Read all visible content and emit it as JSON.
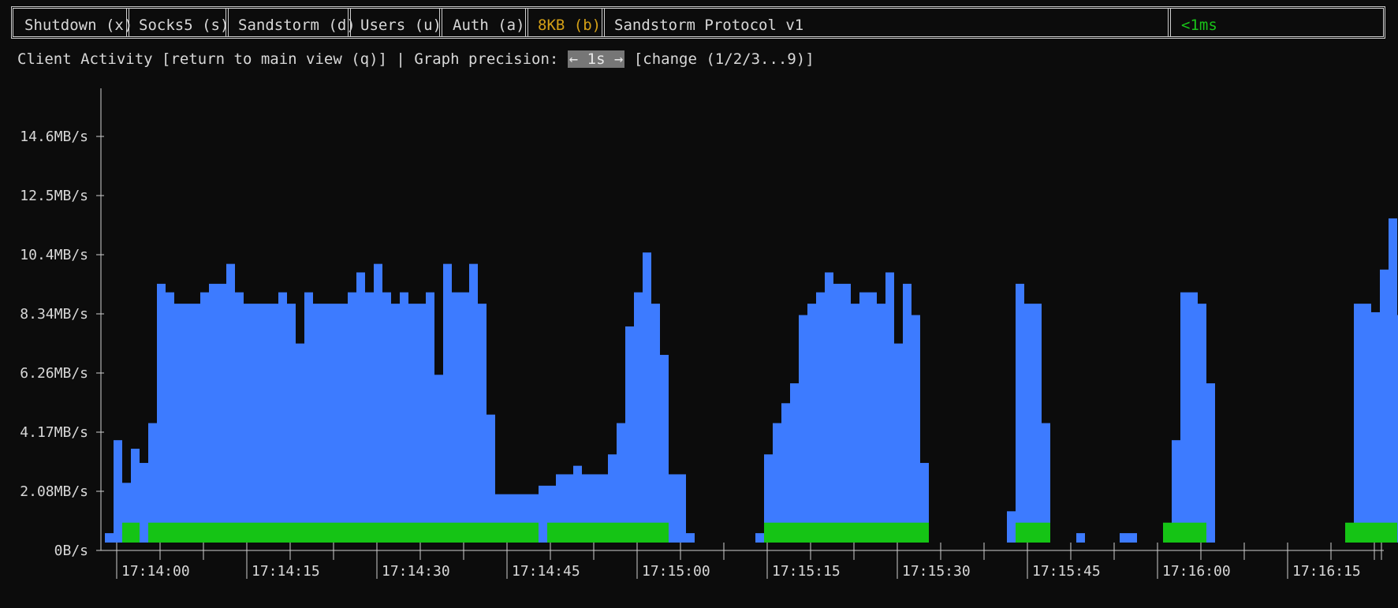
{
  "menu": {
    "items": [
      {
        "label": "Shutdown (x)",
        "color": "#d8d8d8"
      },
      {
        "label": "Socks5 (s)",
        "color": "#d8d8d8"
      },
      {
        "label": "Sandstorm (d)",
        "color": "#d8d8d8"
      },
      {
        "label": "Users (u)",
        "color": "#d8d8d8"
      },
      {
        "label": "Auth (a)",
        "color": "#d8d8d8"
      },
      {
        "label": "8KB (b)",
        "color": "#d4a017"
      }
    ],
    "title": "Sandstorm Protocol v1",
    "latency": "<1ms",
    "latency_color": "#19c319"
  },
  "subheader": {
    "prefix": "Client Activity [return to main view (q)] | Graph precision: ",
    "precision": "← 1s →",
    "suffix": " [change (1/2/3...9)]"
  },
  "chart_data": {
    "type": "bar",
    "x_tick_labels": [
      "17:14:00",
      "17:14:15",
      "17:14:30",
      "17:14:45",
      "17:15:00",
      "17:15:15",
      "17:15:30",
      "17:15:45",
      "17:16:00",
      "17:16:15"
    ],
    "y_tick_labels": [
      "0B/s",
      "2.08MB/s",
      "4.17MB/s",
      "6.26MB/s",
      "8.34MB/s",
      "10.4MB/s",
      "12.5MB/s",
      "14.6MB/s"
    ],
    "y_unit": "MB/s",
    "ylim": [
      0,
      16.7
    ],
    "colors": {
      "series1": "#3d7bff",
      "series2": "#15c415"
    },
    "series1_values": [
      0.33,
      3.6,
      2.1,
      3.3,
      2.8,
      4.2,
      9.1,
      8.8,
      8.4,
      8.4,
      8.4,
      8.8,
      9.1,
      9.1,
      9.8,
      8.8,
      8.4,
      8.4,
      8.4,
      8.4,
      8.8,
      8.4,
      7.0,
      8.8,
      8.4,
      8.4,
      8.4,
      8.4,
      8.8,
      9.5,
      8.8,
      9.8,
      8.8,
      8.4,
      8.8,
      8.4,
      8.4,
      8.8,
      5.9,
      9.8,
      8.8,
      8.8,
      9.8,
      8.4,
      4.5,
      1.7,
      1.7,
      1.7,
      1.7,
      1.7,
      2.0,
      2.0,
      2.4,
      2.4,
      2.7,
      2.4,
      2.4,
      2.4,
      3.1,
      4.2,
      7.6,
      8.8,
      10.2,
      8.4,
      6.6,
      2.4,
      2.4,
      0.33,
      0,
      0,
      0,
      0,
      0,
      0,
      0,
      0.33,
      3.1,
      4.2,
      4.9,
      5.6,
      8.0,
      8.4,
      8.8,
      9.5,
      9.1,
      9.1,
      8.4,
      8.8,
      8.8,
      8.4,
      9.5,
      7.0,
      9.1,
      8.0,
      2.8,
      0,
      0,
      0,
      0,
      0,
      0,
      0,
      0,
      0,
      1.1,
      9.1,
      8.4,
      8.4,
      4.2,
      0,
      0,
      0,
      0.33,
      0,
      0,
      0,
      0,
      0.33,
      0.33,
      0,
      0,
      0,
      0,
      3.6,
      8.8,
      8.8,
      8.4,
      5.6,
      0,
      0,
      0,
      0,
      0,
      0,
      0,
      0,
      0,
      0,
      0,
      0,
      0,
      0,
      0,
      0.33,
      8.4,
      8.4,
      8.1,
      9.6,
      11.4,
      8.0
    ],
    "series2_values": [
      0,
      0,
      0.7,
      0.7,
      0,
      0.7,
      0.7,
      0.7,
      0.7,
      0.7,
      0.7,
      0.7,
      0.7,
      0.7,
      0.7,
      0.7,
      0.7,
      0.7,
      0.7,
      0.7,
      0.7,
      0.7,
      0.7,
      0.7,
      0.7,
      0.7,
      0.7,
      0.7,
      0.7,
      0.7,
      0.7,
      0.7,
      0.7,
      0.7,
      0.7,
      0.7,
      0.7,
      0.7,
      0.7,
      0.7,
      0.7,
      0.7,
      0.7,
      0.7,
      0.7,
      0.7,
      0.7,
      0.7,
      0.7,
      0.7,
      0,
      0.7,
      0.7,
      0.7,
      0.7,
      0.7,
      0.7,
      0.7,
      0.7,
      0.7,
      0.7,
      0.7,
      0.7,
      0.7,
      0.7,
      0,
      0,
      0,
      0,
      0,
      0,
      0,
      0,
      0,
      0,
      0,
      0.7,
      0.7,
      0.7,
      0.7,
      0.7,
      0.7,
      0.7,
      0.7,
      0.7,
      0.7,
      0.7,
      0.7,
      0.7,
      0.7,
      0.7,
      0.7,
      0.7,
      0.7,
      0.7,
      0,
      0,
      0,
      0,
      0,
      0,
      0,
      0,
      0,
      0,
      0.7,
      0.7,
      0.7,
      0.7,
      0,
      0,
      0,
      0,
      0,
      0,
      0,
      0,
      0,
      0,
      0,
      0,
      0,
      0.7,
      0.7,
      0.7,
      0.7,
      0.7,
      0,
      0,
      0,
      0,
      0,
      0,
      0,
      0,
      0,
      0,
      0,
      0,
      0,
      0,
      0,
      0,
      0.7,
      0.7,
      0.7,
      0.7,
      0.7,
      0.7
    ]
  }
}
